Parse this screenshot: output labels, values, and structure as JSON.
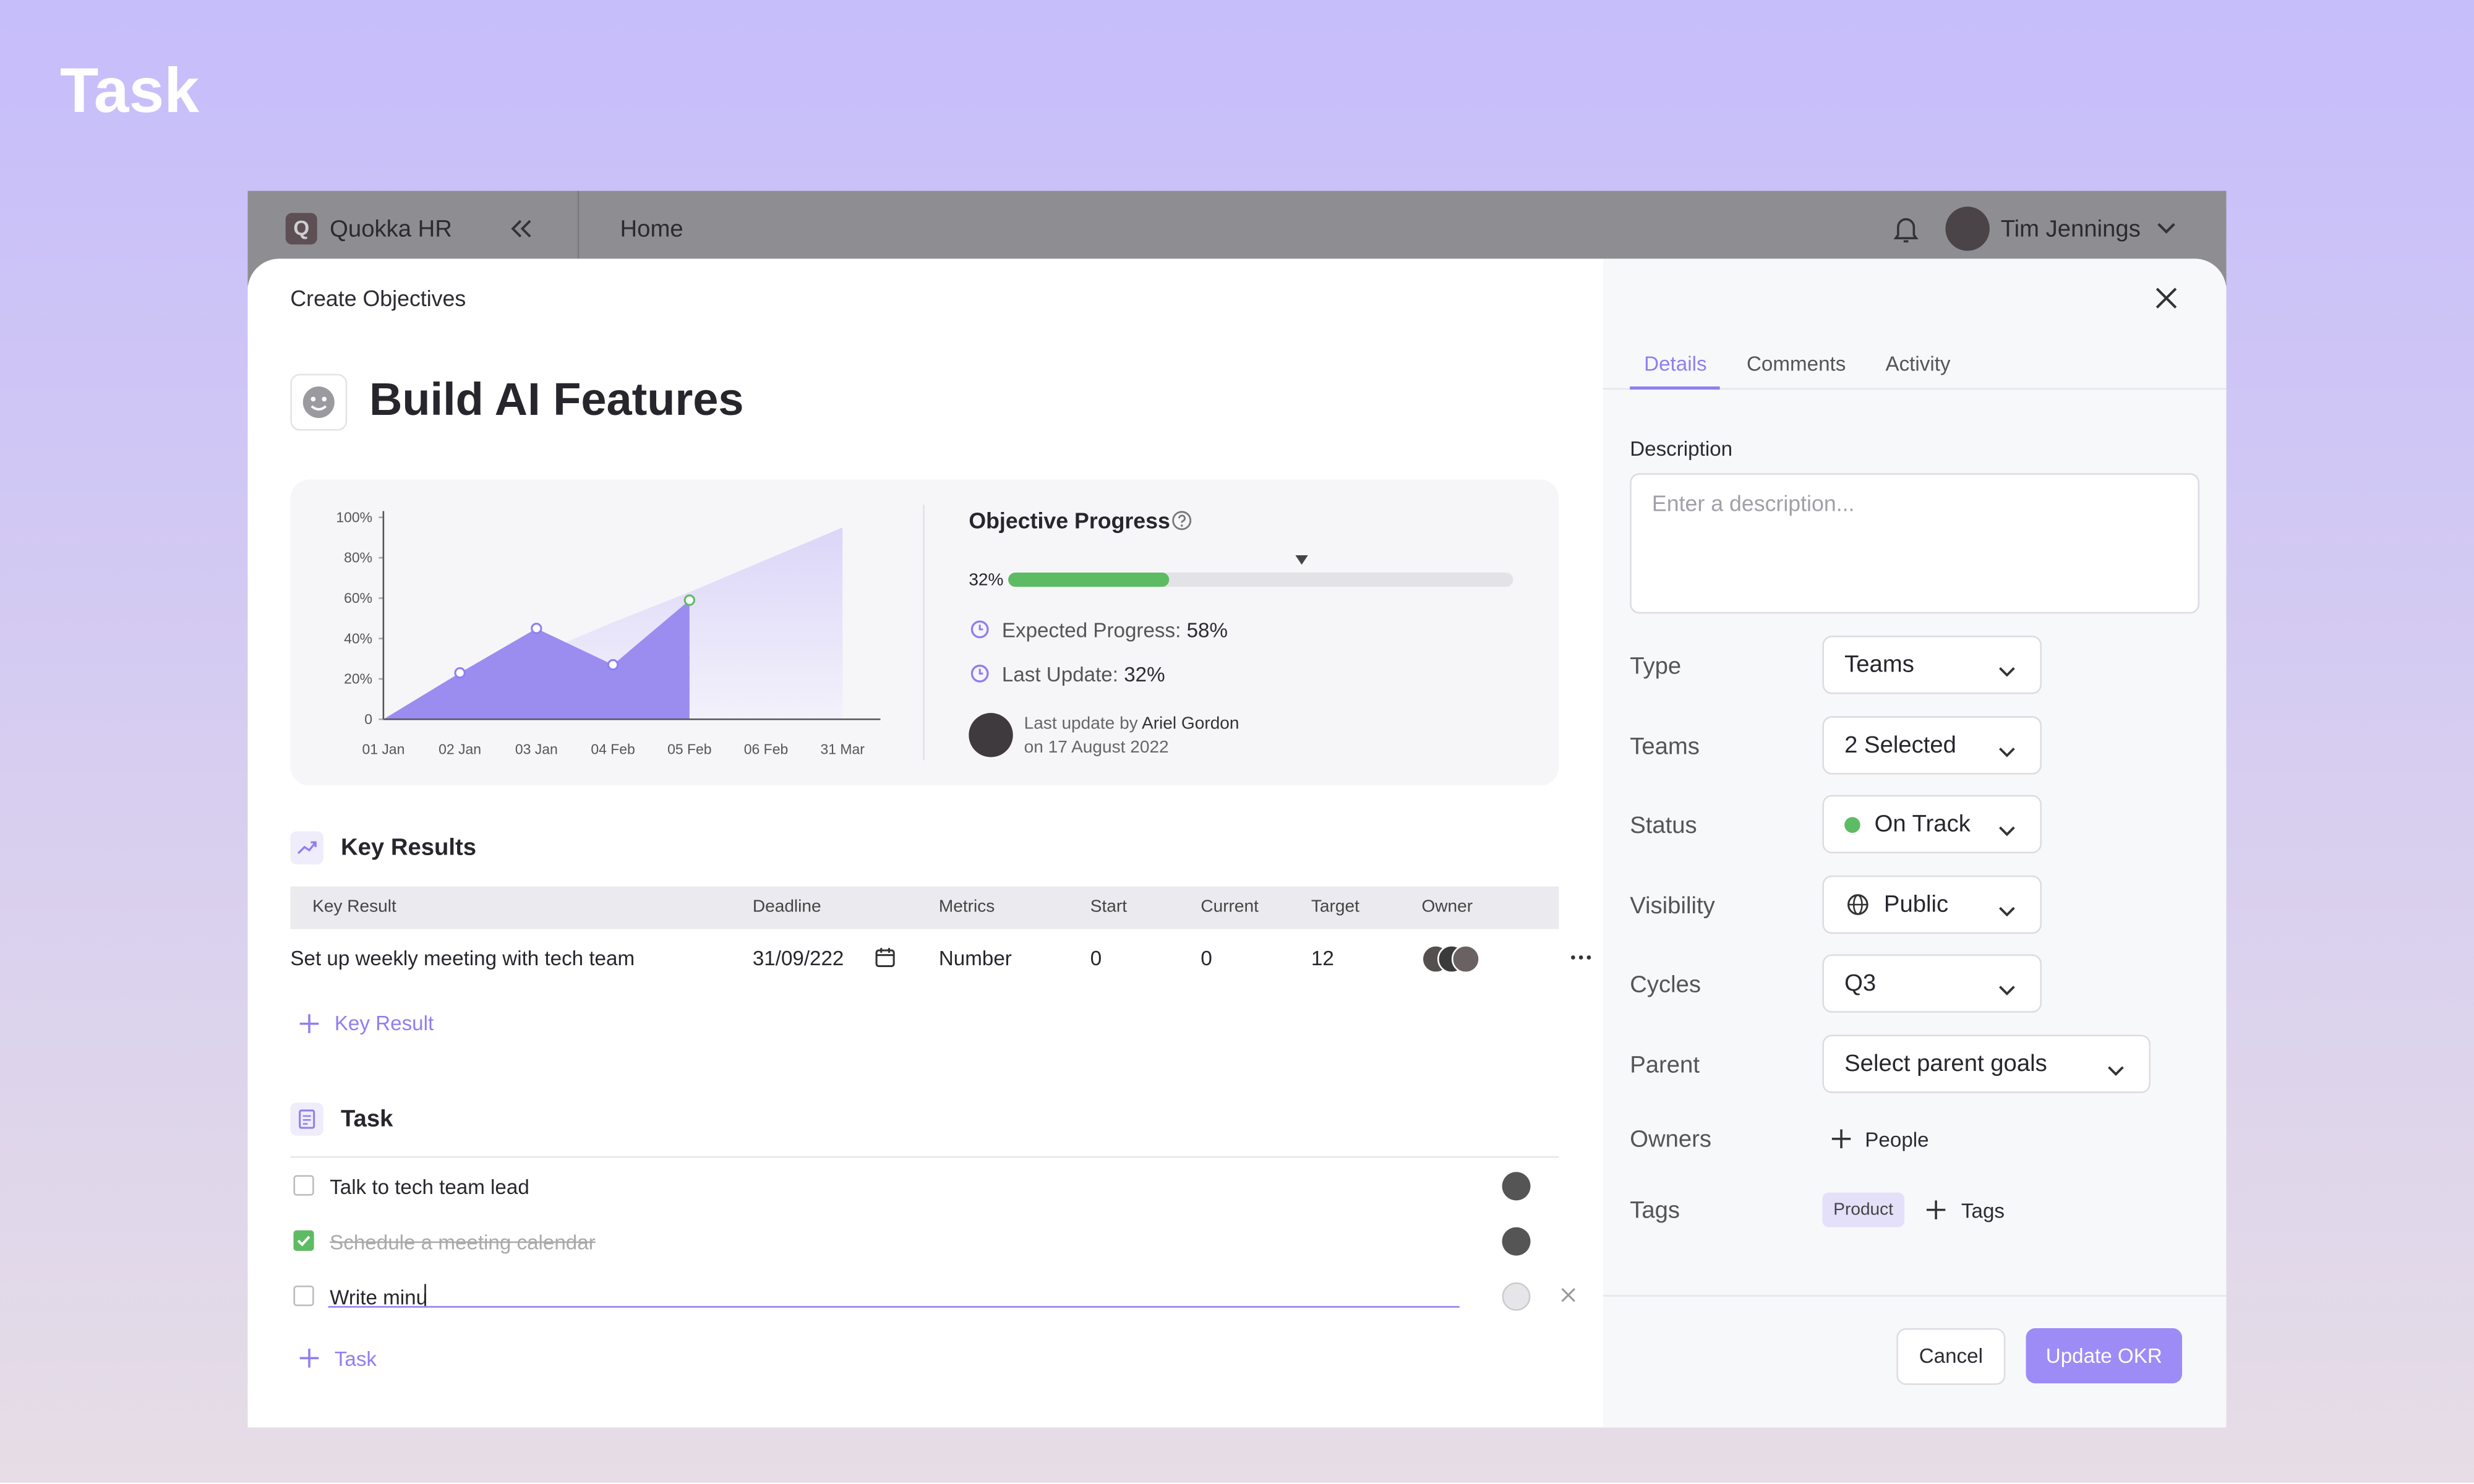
{
  "page_title": "Task",
  "topbar": {
    "brand_initial": "Q",
    "brand": "Quokka HR",
    "nav": "Home",
    "user": "Tim Jennings"
  },
  "modal": {
    "heading": "Create Objectives",
    "objective_title": "Build AI Features"
  },
  "chart_data": {
    "type": "area",
    "x": [
      "01 Jan",
      "02 Jan",
      "03 Jan",
      "04 Feb",
      "05 Feb",
      "06 Feb",
      "31 Mar"
    ],
    "series": [
      {
        "color": "#9b8cf0",
        "values": [
          0,
          23,
          45,
          27,
          59,
          null,
          null
        ]
      },
      {
        "color": "#e2def8",
        "values": [
          0,
          16,
          32,
          48,
          63,
          79,
          95
        ]
      }
    ],
    "ylim": [
      0,
      100
    ],
    "yticks": [
      0,
      {
        "value": 20,
        "label": "20%"
      },
      {
        "value": 40,
        "label": "40%"
      },
      {
        "value": 60,
        "label": "60%"
      },
      {
        "value": 80,
        "label": "80%"
      },
      {
        "value": 100,
        "label": "100%"
      }
    ]
  },
  "objective_progress": {
    "title": "Objective Progress",
    "value": 32,
    "value_label": "32%",
    "expected": 58,
    "expected_label": "Expected Progress:",
    "expected_text": "58%",
    "last_label": "Last Update:",
    "last_text": "32%",
    "update_by": "Last update by",
    "update_person": "Ariel Gordon",
    "update_date": "on 17 August 2022"
  },
  "key_results": {
    "title": "Key Results",
    "headers": [
      "Key Result",
      "Deadline",
      "Metrics",
      "Start",
      "Current",
      "Target",
      "Owner"
    ],
    "rows": [
      [
        "Set up weekly meeting with tech team",
        "31/09/222",
        "Number",
        "0",
        "0",
        "12"
      ]
    ],
    "add": "Key Result"
  },
  "tasks": {
    "title": "Task",
    "items": [
      {
        "text": "Talk to tech team lead",
        "done": false
      },
      {
        "text": "Schedule a meeting calendar",
        "done": true
      },
      {
        "text": "Write minu",
        "done": false
      }
    ],
    "add": "Task"
  },
  "panel": {
    "tabs": [
      "Details",
      "Comments",
      "Activity"
    ],
    "description_label": "Description",
    "description_placeholder": "Enter a description...",
    "fields": [
      {
        "label": "Type",
        "value": "Teams"
      },
      {
        "label": "Teams",
        "value": "2 Selected"
      },
      {
        "label": "Status",
        "value": "On Track"
      },
      {
        "label": "Visibility",
        "value": "Public"
      },
      {
        "label": "Cycles",
        "value": "Q3"
      },
      {
        "label": "Parent",
        "value": "Select parent goals"
      }
    ],
    "owners_label": "Owners",
    "owners_add": "People",
    "tags_label": "Tags",
    "tag": "Product",
    "tags_add": "Tags",
    "cancel": "Cancel",
    "submit": "Update OKR"
  }
}
